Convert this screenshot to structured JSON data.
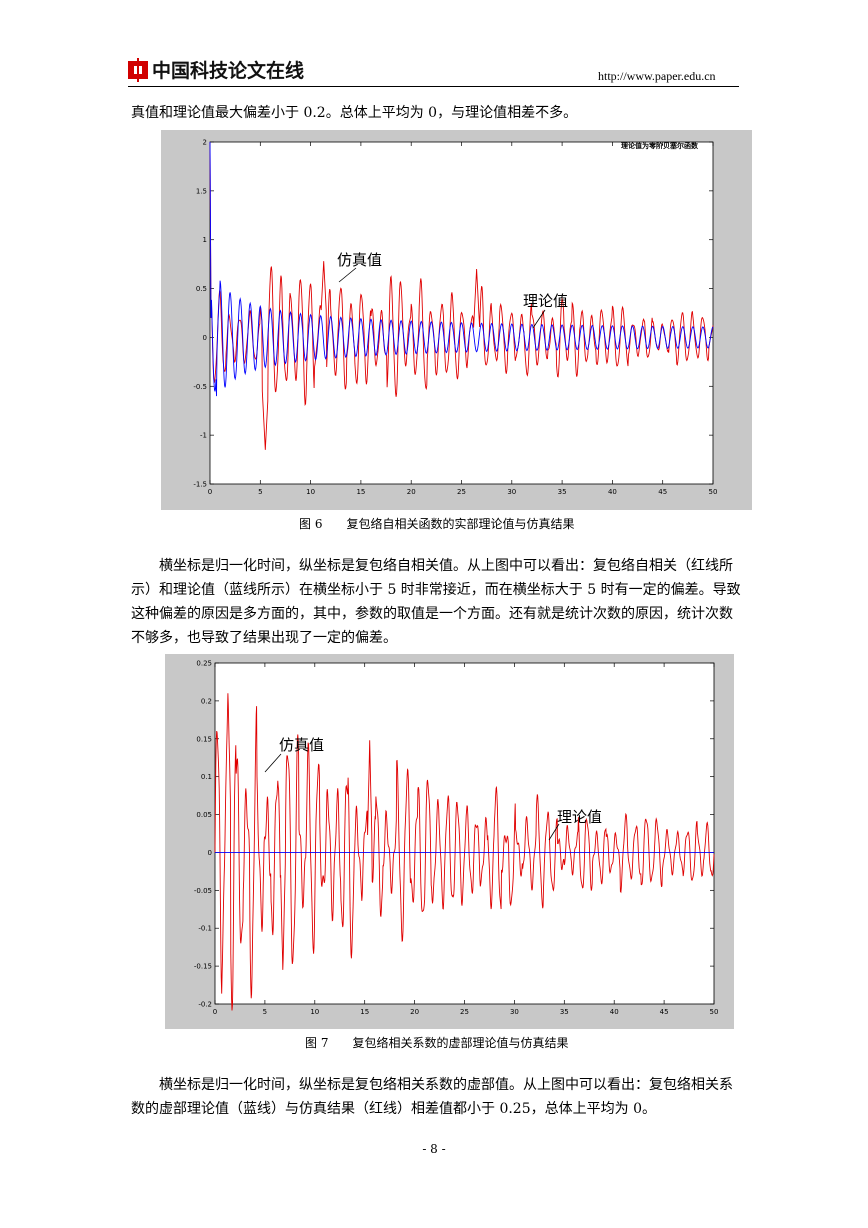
{
  "header": {
    "logo_text": "中国科技论文在线",
    "url": "http://www.paper.edu.cn"
  },
  "body_text": {
    "p1": "真值和理论值最大偏差小于 0.2。总体上平均为 0，与理论值相差不多。",
    "p2": "横坐标是归一化时间，纵坐标是复包络自相关值。从上图中可以看出：复包络自相关（红线所示）和理论值（蓝线所示）在横坐标小于 5 时非常接近，而在横坐标大于 5 时有一定的偏差。导致这种偏差的原因是多方面的，其中，参数的取值是一个方面。还有就是统计次数的原因，统计次数不够多，也导致了结果出现了一定的偏差。",
    "p3": "横坐标是归一化时间，纵坐标是复包络相关系数的虚部值。从上图中可以看出：复包络相关系数的虚部理论值（蓝线）与仿真结果（红线）相差值都小于 0.25，总体上平均为 0。"
  },
  "figures": {
    "fig6_caption": "图 6　　复包络自相关函数的实部理论值与仿真结果",
    "fig7_caption": "图 7　　复包络相关系数的虚部理论值与仿真结果"
  },
  "page_number": "- 8 -",
  "chart_data": [
    {
      "type": "line",
      "annotations": [
        "仿真值",
        "理论值"
      ],
      "legend_text": "理论值为零阶贝塞尔函数",
      "xlim": [
        0,
        50
      ],
      "ylim": [
        -1.5,
        2
      ],
      "x_ticks": [
        "0",
        "5",
        "10",
        "15",
        "20",
        "25",
        "30",
        "35",
        "40",
        "45",
        "50"
      ],
      "y_ticks": [
        "2",
        "1.5",
        "1",
        "0.5",
        "0",
        "-0.5",
        "-1",
        "-1.5"
      ],
      "series": [
        {
          "color": "#0000ff",
          "description": "theoretical"
        },
        {
          "color": "#e00000",
          "description": "simulated"
        }
      ],
      "peaks": [
        {
          "x": 0,
          "y": 2.0
        },
        {
          "x": 0.5,
          "y": -0.8
        },
        {
          "x": 5.5,
          "y": -1.15
        },
        {
          "x": 11.3,
          "y": 0.78
        },
        {
          "x": 17,
          "y": -0.75
        },
        {
          "x": 26.5,
          "y": 0.7
        }
      ]
    },
    {
      "type": "line",
      "annotations": [
        "仿真值",
        "理论值"
      ],
      "xlim": [
        0,
        50
      ],
      "ylim": [
        -0.2,
        0.25
      ],
      "x_ticks": [
        "0",
        "5",
        "10",
        "15",
        "20",
        "25",
        "30",
        "35",
        "40",
        "45",
        "50"
      ],
      "y_ticks": [
        "0.25",
        "0.2",
        "0.15",
        "0.1",
        "0.05",
        "0",
        "-0.05",
        "-0.1",
        "-0.15",
        "-0.2"
      ],
      "series": [
        {
          "color": "#0000ff",
          "description": "theoretical",
          "value": 0
        },
        {
          "color": "#e00000",
          "description": "simulated"
        }
      ],
      "peaks": [
        {
          "x": 1.3,
          "y": 0.215
        },
        {
          "x": 6.8,
          "y": -0.16
        },
        {
          "x": 15.5,
          "y": 0.148
        },
        {
          "x": 21.8,
          "y": -0.118
        }
      ]
    }
  ]
}
